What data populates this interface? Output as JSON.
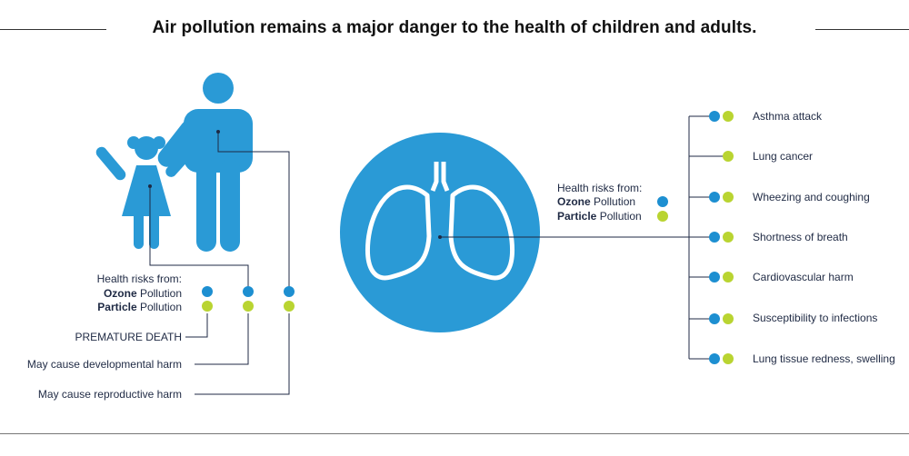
{
  "title": "Air pollution remains a major danger to the health of children and adults.",
  "colors": {
    "figure_blue": "#2a9ad6",
    "ozone_dot": "#1d8fd1",
    "particle_dot": "#b9d431",
    "line": "#1f2a44",
    "lung_outline": "#ffffff"
  },
  "left_panel": {
    "risk_header": "Health risks from:",
    "ozone_bold": "Ozone",
    "ozone_rest": " Pollution",
    "particle_bold": "Particle",
    "particle_rest": " Pollution",
    "risks": [
      "PREMATURE DEATH",
      "May cause developmental harm",
      "May cause reproductive harm"
    ]
  },
  "right_panel": {
    "risk_header": "Health risks from:",
    "ozone_bold": "Ozone",
    "ozone_rest": " Pollution",
    "particle_bold": "Particle",
    "particle_rest": " Pollution",
    "effects": [
      {
        "label": "Asthma attack",
        "ozone": true,
        "particle": true
      },
      {
        "label": "Lung cancer",
        "ozone": false,
        "particle": true
      },
      {
        "label": "Wheezing and coughing",
        "ozone": true,
        "particle": true
      },
      {
        "label": "Shortness of breath",
        "ozone": true,
        "particle": true
      },
      {
        "label": "Cardiovascular harm",
        "ozone": true,
        "particle": true
      },
      {
        "label": "Susceptibility to infections",
        "ozone": true,
        "particle": true
      },
      {
        "label": "Lung tissue redness, swelling",
        "ozone": true,
        "particle": true
      }
    ]
  },
  "icons": {
    "adult": "adult-figure-icon",
    "child": "child-figure-icon",
    "lungs": "lungs-icon"
  }
}
